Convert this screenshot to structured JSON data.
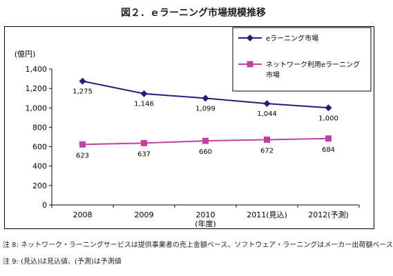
{
  "title": "図２．ｅラーニング市場規模推移",
  "chart_data": {
    "type": "line",
    "categories": [
      "2008",
      "2009",
      "2010",
      "2011(見込)",
      "2012(予測)"
    ],
    "xlabel": "(年度)",
    "ylabel": "(億円)",
    "ylim": [
      0,
      1400
    ],
    "yticks": [
      0,
      200,
      400,
      600,
      800,
      1000,
      1200,
      1400
    ],
    "ytick_labels": [
      "0",
      "200",
      "400",
      "600",
      "800",
      "1,000",
      "1,200",
      "1,400"
    ],
    "grid": false,
    "legend_position": "top-right",
    "series": [
      {
        "name": "eラーニング市場",
        "values": [
          1275,
          1146,
          1099,
          1044,
          1000
        ],
        "labels": [
          "1,275",
          "1,146",
          "1,099",
          "1,044",
          "1,000"
        ],
        "color": "#1f1f7a",
        "marker": "diamond"
      },
      {
        "name": "ネットワーク利用eラーニング市場",
        "legend_lines": [
          "ネットワーク利用eラーニング",
          "市場"
        ],
        "values": [
          623,
          637,
          660,
          672,
          684
        ],
        "labels": [
          "623",
          "637",
          "660",
          "672",
          "684"
        ],
        "color": "#c43ea8",
        "marker": "square"
      }
    ]
  },
  "notes": [
    "注 8: ネットワーク・ラーニングサービスは提供事業者の売上金額ベース、ソフトウェア・ラーニングはメーカー出荷額ベース",
    "注 9: (見込)は見込値、(予測)は予測値"
  ]
}
